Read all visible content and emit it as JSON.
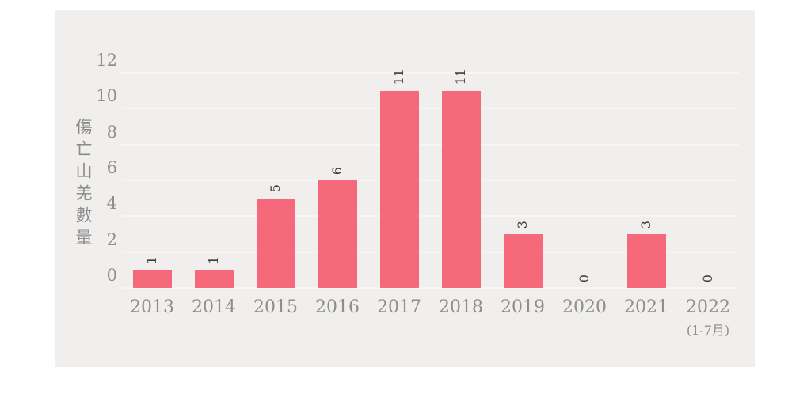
{
  "chart_data": {
    "type": "bar",
    "title": "",
    "ylabel": "傷亡山羌數量",
    "xlabel": "",
    "categories": [
      "2013",
      "2014",
      "2015",
      "2016",
      "2017",
      "2018",
      "2019",
      "2020",
      "2021",
      "2022"
    ],
    "values": [
      1,
      1,
      5,
      6,
      11,
      11,
      3,
      0,
      3,
      0
    ],
    "category_note": {
      "category": "2022",
      "text": "(1-7月)"
    },
    "yticks": [
      0,
      2,
      4,
      6,
      8,
      10,
      12
    ],
    "ylim": [
      0,
      12
    ],
    "grid": "horizontal-only",
    "legend": "none",
    "colors": {
      "bar": "#F5697A",
      "panel_background": "#F0EFED",
      "gridline": "#F7F6F4",
      "axis_text": "#8E8E8E",
      "y_axis_title_text": "#8A8A8A",
      "value_label_text": "#3B3B3B",
      "page_background": "#FFFFFF"
    }
  }
}
